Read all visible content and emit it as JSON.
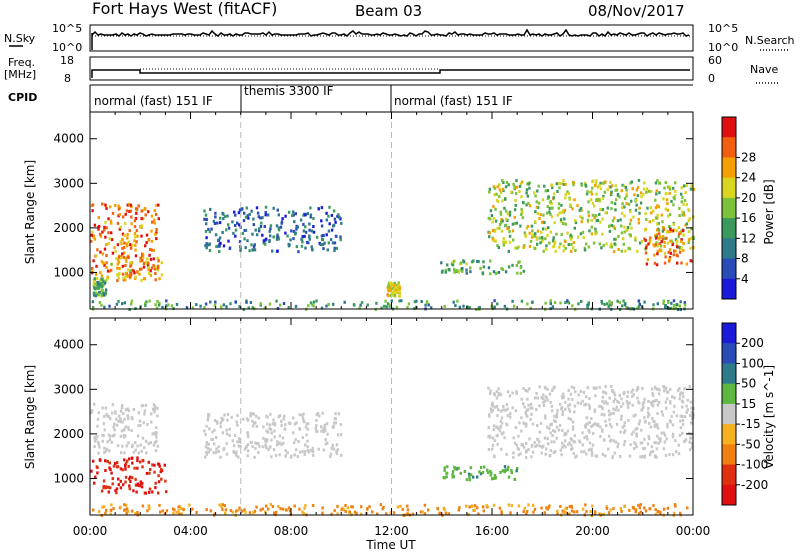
{
  "header": {
    "title": "Fort Hays West (fitACF)",
    "beam": "Beam 03",
    "date": "08/Nov/2017"
  },
  "panels": {
    "nsky": {
      "label": "N.Sky",
      "yticks": [
        "10^5",
        "10^0"
      ],
      "right_label": "N.Search",
      "right_yticks": [
        "10^5",
        "10^0"
      ]
    },
    "freq": {
      "label": "Freq.",
      "unit": "[MHz]",
      "yticks": [
        "18",
        "8"
      ],
      "right_label": "Nave",
      "right_yticks": [
        "60",
        "0"
      ]
    },
    "cpid": {
      "label": "CPID",
      "segments": [
        {
          "name": "normal (fast) 151 IF",
          "start_h": 0,
          "end_h": 6
        },
        {
          "name": "themis 3300 IF",
          "start_h": 6,
          "end_h": 12
        },
        {
          "name": "normal (fast) 151 IF",
          "start_h": 12,
          "end_h": 24
        }
      ]
    }
  },
  "chart_data": [
    {
      "type": "heatmap",
      "name": "power",
      "ylabel": "Slant Range [km]",
      "ylim": [
        180,
        4600
      ],
      "yticks": [
        1000,
        2000,
        3000,
        4000
      ],
      "xlabel": "Time UT",
      "xlim": [
        0,
        24
      ],
      "xticks": [
        "00:00",
        "04:00",
        "08:00",
        "12:00",
        "16:00",
        "20:00",
        "00:00"
      ],
      "colorbar": {
        "label": "Power [dB]",
        "ticks": [
          "4",
          "8",
          "12",
          "16",
          "20",
          "24",
          "28"
        ],
        "colors": [
          "#1a1ad8",
          "#2a4cb8",
          "#2f7a8a",
          "#3a9a5e",
          "#7cc23a",
          "#d8d620",
          "#f5a000",
          "#f06010",
          "#e01010"
        ]
      },
      "regions": [
        {
          "t0": 0.0,
          "t1": 2.7,
          "r0": 950,
          "r1": 2600,
          "level": 0.85
        },
        {
          "t0": 0.5,
          "t1": 2.9,
          "r0": 850,
          "r1": 1400,
          "level": 0.75
        },
        {
          "t0": 0.1,
          "t1": 0.6,
          "r0": 500,
          "r1": 900,
          "level": 0.45
        },
        {
          "t0": 4.5,
          "t1": 10.0,
          "r0": 1500,
          "r1": 2500,
          "level": 0.2
        },
        {
          "t0": 0.0,
          "t1": 24.0,
          "r0": 200,
          "r1": 400,
          "level": 0.35
        },
        {
          "t0": 11.8,
          "t1": 12.3,
          "r0": 500,
          "r1": 800,
          "level": 0.65
        },
        {
          "t0": 13.8,
          "t1": 17.3,
          "r0": 1000,
          "r1": 1300,
          "level": 0.4
        },
        {
          "t0": 15.8,
          "t1": 24.0,
          "r0": 1500,
          "r1": 3100,
          "level": 0.55
        },
        {
          "t0": 22.0,
          "t1": 24.0,
          "r0": 1200,
          "r1": 2000,
          "level": 0.85
        }
      ]
    },
    {
      "type": "heatmap",
      "name": "velocity",
      "ylabel": "Slant Range [km]",
      "ylim": [
        180,
        4600
      ],
      "yticks": [
        1000,
        2000,
        3000,
        4000
      ],
      "xlabel": "Time UT",
      "xlim": [
        0,
        24
      ],
      "xticks": [
        "00:00",
        "04:00",
        "08:00",
        "12:00",
        "16:00",
        "20:00",
        "00:00"
      ],
      "colorbar": {
        "label": "Velocity [m s^-1]",
        "ticks": [
          "200",
          "100",
          "50",
          "15",
          "-15",
          "-50",
          "-100",
          "-200"
        ],
        "colors": [
          "#1a1ad8",
          "#2a4cb8",
          "#2f7a8a",
          "#5cb840",
          "#c8c8c8",
          "#f5b020",
          "#f08010",
          "#e03010",
          "#e01010"
        ]
      },
      "regions": [
        {
          "t0": 0.0,
          "t1": 3.0,
          "r0": 700,
          "r1": 1500,
          "level": -0.9
        },
        {
          "t0": 0.0,
          "t1": 2.7,
          "r0": 1600,
          "r1": 2700,
          "level": 0.0
        },
        {
          "t0": 4.5,
          "t1": 10.0,
          "r0": 1500,
          "r1": 2500,
          "level": 0.0
        },
        {
          "t0": 0.0,
          "t1": 24.0,
          "r0": 200,
          "r1": 450,
          "level": -0.4
        },
        {
          "t0": 15.8,
          "t1": 24.0,
          "r0": 1500,
          "r1": 3100,
          "level": 0.0
        },
        {
          "t0": 14.0,
          "t1": 17.0,
          "r0": 1000,
          "r1": 1300,
          "level": 0.3
        }
      ]
    }
  ]
}
